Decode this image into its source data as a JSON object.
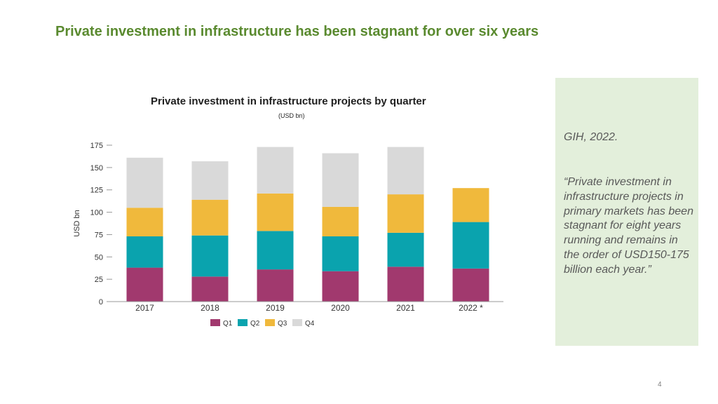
{
  "slide": {
    "title": "Private investment in infrastructure has been stagnant for over six years",
    "page_number": "4"
  },
  "quote_box": {
    "source": "GIH, 2022.",
    "quote": "“Private investment in infrastructure projects in primary markets has been stagnant for eight years running and remains in the order of USD150-175 billion each year.”"
  },
  "colors": {
    "title": "#5a8a2f",
    "q1": "#a1396e",
    "q2": "#0aa3ae",
    "q3": "#f0b93c",
    "q4": "#d9d9d9",
    "quote_bg": "#e3efdb"
  },
  "chart_data": {
    "type": "bar",
    "stacked": true,
    "title": "Private investment in infrastructure projects by quarter",
    "subtitle": "(USD bn)",
    "xlabel": "",
    "ylabel": "USD bn",
    "ylim": [
      0,
      175
    ],
    "yticks": [
      0,
      25,
      50,
      75,
      100,
      125,
      150,
      175
    ],
    "grid": false,
    "legend_position": "bottom",
    "categories": [
      "2017",
      "2018",
      "2019",
      "2020",
      "2021",
      "2022 *"
    ],
    "series": [
      {
        "name": "Q1",
        "color": "#a1396e",
        "values": [
          38,
          28,
          36,
          34,
          39,
          37
        ]
      },
      {
        "name": "Q2",
        "color": "#0aa3ae",
        "values": [
          35,
          46,
          43,
          39,
          38,
          52
        ]
      },
      {
        "name": "Q3",
        "color": "#f0b93c",
        "values": [
          32,
          40,
          42,
          33,
          43,
          38
        ]
      },
      {
        "name": "Q4",
        "color": "#d9d9d9",
        "values": [
          56,
          43,
          52,
          60,
          53,
          0
        ]
      }
    ]
  }
}
